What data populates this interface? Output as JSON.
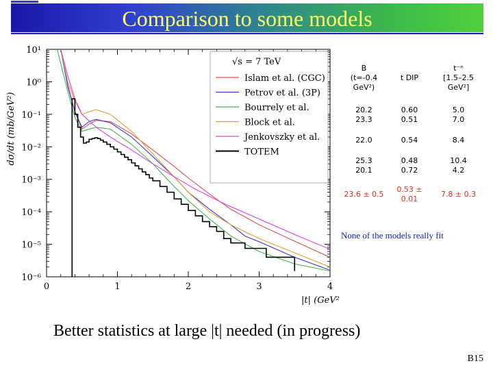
{
  "slide": {
    "title": "Comparison to some models",
    "note": "None of the models really fit",
    "bottom_text": "Better statistics at large |t| needed (in progress)",
    "page_number": "B15"
  },
  "table": {
    "headers": [
      "B\n(t=-0.4\nGeV²)",
      "t DIP",
      "t⁻ⁿ\n[1.5–2.5\nGeV²]"
    ],
    "rows": [
      [
        "20.2\n23.3",
        "0.60\n0.51",
        "5.0\n7.0"
      ],
      [
        "22.0",
        "0.54",
        "8.4"
      ],
      [
        "25.3\n20.1",
        "0.48\n0.72",
        "10.4\n4.2"
      ],
      [
        "23.6 ± 0.5",
        "0.53 ±\n0.01",
        "7.8 ± 0.3"
      ]
    ]
  },
  "chart_data": {
    "type": "line",
    "xlabel": "|t|  (GeV²)",
    "ylabel": "dσ/dt  (mb/GeV²)",
    "xlim": [
      0,
      4
    ],
    "ylim_log10": [
      -6,
      1
    ],
    "x_ticks": [
      "0",
      "1",
      "2",
      "3",
      "4"
    ],
    "y_ticks": [
      "10⁻⁶",
      "10⁻⁵",
      "10⁻⁴",
      "10⁻³",
      "10⁻²",
      "10⁻¹",
      "10⁰",
      "10¹"
    ],
    "legend_header": "√s = 7 TeV",
    "legend_position": "top-right",
    "colors": {
      "Islam": "#d9534f",
      "Petrov": "#3a3ad8",
      "Bourrely": "#3cb84a",
      "Block": "#e0a030",
      "Jenkovszky": "#e040e0",
      "TOTEM": "#000000"
    },
    "series": [
      {
        "name": "Islam et al. (CGC)",
        "key": "Islam",
        "points": [
          [
            0.2,
            10
          ],
          [
            0.3,
            0.8
          ],
          [
            0.4,
            0.12
          ],
          [
            0.5,
            0.035
          ],
          [
            0.6,
            0.05
          ],
          [
            0.7,
            0.065
          ],
          [
            0.9,
            0.06
          ],
          [
            1.2,
            0.025
          ],
          [
            1.5,
            0.008
          ],
          [
            1.8,
            0.0025
          ],
          [
            2.0,
            0.0011
          ],
          [
            2.3,
            0.00035
          ],
          [
            2.6,
            0.00012
          ],
          [
            3.0,
            4e-05
          ],
          [
            3.5,
            1.25e-05
          ],
          [
            4.0,
            4e-06
          ]
        ]
      },
      {
        "name": "Petrov et al. (3P)",
        "key": "Petrov",
        "points": [
          [
            0.2,
            10
          ],
          [
            0.3,
            0.7
          ],
          [
            0.4,
            0.12
          ],
          [
            0.5,
            0.04
          ],
          [
            0.6,
            0.06
          ],
          [
            0.7,
            0.07
          ],
          [
            0.9,
            0.055
          ],
          [
            1.2,
            0.02
          ],
          [
            1.5,
            0.005
          ],
          [
            1.8,
            0.0012
          ],
          [
            2.0,
            0.0004
          ],
          [
            2.3,
            0.00012
          ],
          [
            2.6,
            4e-05
          ],
          [
            2.8,
            1.8e-05
          ],
          [
            3.0,
            1.2e-05
          ],
          [
            3.5,
            4e-06
          ],
          [
            4.0,
            1.6e-06
          ]
        ]
      },
      {
        "name": "Bourrely et al.",
        "key": "Bourrely",
        "points": [
          [
            0.15,
            10
          ],
          [
            0.3,
            0.5
          ],
          [
            0.4,
            0.08
          ],
          [
            0.5,
            0.03
          ],
          [
            0.6,
            0.035
          ],
          [
            0.7,
            0.04
          ],
          [
            0.9,
            0.035
          ],
          [
            1.2,
            0.012
          ],
          [
            1.5,
            0.003
          ],
          [
            1.8,
            0.0006
          ],
          [
            2.0,
            0.00022
          ],
          [
            2.3,
            6e-05
          ],
          [
            2.6,
            1.8e-05
          ],
          [
            3.0,
            6e-06
          ],
          [
            3.5,
            2.5e-06
          ],
          [
            4.0,
            1.5e-06
          ]
        ]
      },
      {
        "name": "Block et al.",
        "key": "Block",
        "points": [
          [
            0.2,
            10
          ],
          [
            0.3,
            1.0
          ],
          [
            0.4,
            0.25
          ],
          [
            0.5,
            0.1
          ],
          [
            0.6,
            0.12
          ],
          [
            0.7,
            0.14
          ],
          [
            0.9,
            0.1
          ],
          [
            1.2,
            0.03
          ],
          [
            1.5,
            0.006
          ],
          [
            1.8,
            0.0012
          ],
          [
            2.0,
            0.0004
          ],
          [
            2.3,
            0.0001
          ],
          [
            2.6,
            4e-05
          ],
          [
            3.0,
            1.5e-05
          ],
          [
            3.5,
            5.5e-06
          ],
          [
            4.0,
            2e-06
          ]
        ]
      },
      {
        "name": "Jenkovszky et al.",
        "key": "Jenkovszky",
        "points": [
          [
            0.2,
            10
          ],
          [
            0.3,
            1.5
          ],
          [
            0.4,
            0.3
          ],
          [
            0.5,
            0.1
          ],
          [
            0.7,
            0.04
          ],
          [
            0.9,
            0.02
          ],
          [
            1.2,
            0.008
          ],
          [
            1.5,
            0.003
          ],
          [
            1.8,
            0.0012
          ],
          [
            2.1,
            0.0005
          ],
          [
            2.5,
            0.00018
          ],
          [
            3.0,
            6e-05
          ],
          [
            3.5,
            2e-05
          ],
          [
            4.0,
            7e-06
          ]
        ]
      },
      {
        "name": "TOTEM",
        "key": "TOTEM",
        "points": [
          [
            0.36,
            1e-06
          ],
          [
            0.36,
            0.3
          ],
          [
            0.4,
            0.1
          ],
          [
            0.44,
            0.04
          ],
          [
            0.48,
            0.02
          ],
          [
            0.52,
            0.013
          ],
          [
            0.56,
            0.014
          ],
          [
            0.6,
            0.017
          ],
          [
            0.64,
            0.018
          ],
          [
            0.68,
            0.019
          ],
          [
            0.72,
            0.018
          ],
          [
            0.76,
            0.016
          ],
          [
            0.8,
            0.014
          ],
          [
            0.85,
            0.012
          ],
          [
            0.9,
            0.01
          ],
          [
            0.95,
            0.0085
          ],
          [
            1.0,
            0.007
          ],
          [
            1.05,
            0.0058
          ],
          [
            1.1,
            0.0048
          ],
          [
            1.15,
            0.004
          ],
          [
            1.2,
            0.0032
          ],
          [
            1.25,
            0.0026
          ],
          [
            1.3,
            0.0021
          ],
          [
            1.35,
            0.0017
          ],
          [
            1.4,
            0.0014
          ],
          [
            1.45,
            0.0011
          ],
          [
            1.5,
            0.0009
          ],
          [
            1.6,
            0.0006
          ],
          [
            1.7,
            0.0004
          ],
          [
            1.8,
            0.00025
          ],
          [
            1.9,
            0.00017
          ],
          [
            2.0,
            0.00011
          ],
          [
            2.1,
            7.5e-05
          ],
          [
            2.2,
            5e-05
          ],
          [
            2.3,
            3.5e-05
          ],
          [
            2.4,
            2.5e-05
          ],
          [
            2.5,
            1.5e-05
          ],
          [
            2.6,
            1.1e-05
          ],
          [
            2.8,
            7.5e-06
          ],
          [
            3.1,
            4e-06
          ],
          [
            3.5,
            1.5e-06
          ]
        ]
      }
    ]
  }
}
